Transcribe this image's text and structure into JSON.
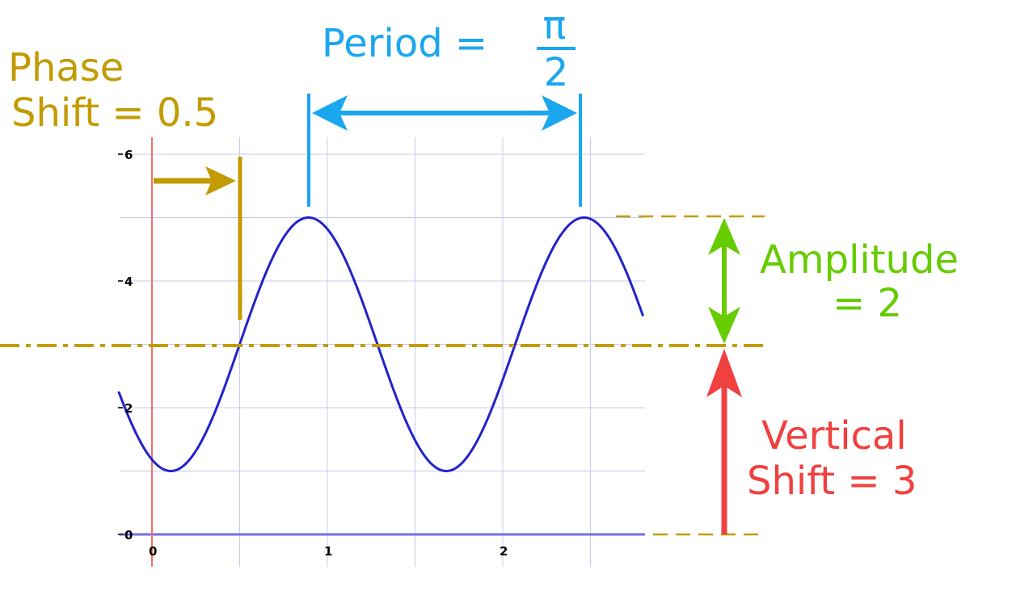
{
  "chart_data": {
    "type": "line",
    "title": "",
    "xlabel": "",
    "ylabel": "",
    "xlim": [
      -0.19,
      2.8
    ],
    "ylim": [
      -0.5,
      6.2
    ],
    "x_ticks": [
      {
        "value": 0,
        "label": "0"
      },
      {
        "value": 1,
        "label": "1"
      },
      {
        "value": 2,
        "label": "2"
      }
    ],
    "y_ticks": [
      {
        "value": 0,
        "label": "0"
      },
      {
        "value": 2,
        "label": "2"
      },
      {
        "value": 4,
        "label": "4"
      },
      {
        "value": 6,
        "label": "6"
      }
    ],
    "grid": true,
    "series": [
      {
        "function": "y = 3 + 2*sin(4*(x - 0.5))",
        "x_range": [
          -0.19,
          2.8
        ],
        "amplitude": 2,
        "period": "π/2",
        "phase_shift": 0.5,
        "vertical_shift": 3
      }
    ]
  },
  "colors": {
    "curve": "#2222cc",
    "phase": "#c29b00",
    "period": "#1ba7f0",
    "amplitude": "#66cc00",
    "vertical": "#f0403f",
    "grid": "#c8c8f0",
    "axis": "#7070e0",
    "y_axis": "#f07070"
  },
  "annotations": {
    "phase_shift": {
      "line1": "Phase",
      "line2": "Shift = 0.5"
    },
    "period": {
      "label": "Period =",
      "numerator": "π",
      "denominator": "2"
    },
    "amplitude": {
      "line1": "Amplitude",
      "line2": "= 2"
    },
    "vertical_shift": {
      "line1": "Vertical",
      "line2": "Shift = 3"
    }
  }
}
